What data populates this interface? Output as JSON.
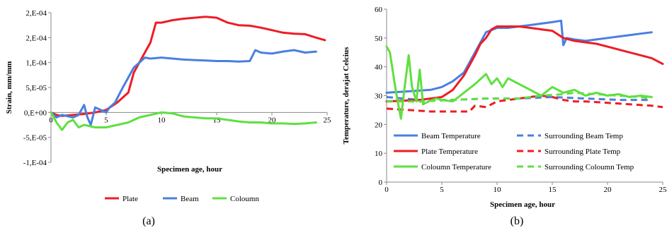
{
  "chart_data": [
    {
      "type": "line",
      "panel_label": "(a)",
      "xlabel": "Specimen age, hour",
      "ylabel": "Strain, mm/mm",
      "xlim": [
        0,
        25
      ],
      "ylim": [
        -0.0001,
        0.0002
      ],
      "xticks": [
        0,
        5,
        10,
        15,
        20,
        25
      ],
      "xtick_labels": [
        "0",
        "5",
        "10",
        "15",
        "20",
        "25"
      ],
      "yticks": [
        0.0002,
        0.00015,
        0.0001,
        5e-05,
        0,
        -5e-05,
        -0.0001
      ],
      "ytick_labels": [
        "2,E-04",
        "2,E-04",
        "1,E-04",
        "5,E-05",
        "0,E+00",
        "-5,E-05",
        "-1,E-04"
      ],
      "grid": false,
      "legend_position": "bottom",
      "series": [
        {
          "name": "Plate",
          "color": "#ee1c25",
          "dash": "solid",
          "points": [
            [
              0,
              0
            ],
            [
              0.5,
              -5e-06
            ],
            [
              1,
              -7e-06
            ],
            [
              2,
              -5e-06
            ],
            [
              3,
              -3e-06
            ],
            [
              4,
              0
            ],
            [
              5,
              5e-06
            ],
            [
              6,
              2e-05
            ],
            [
              7,
              4e-05
            ],
            [
              7.5,
              8e-05
            ],
            [
              8,
              0.0001
            ],
            [
              8.5,
              0.00012
            ],
            [
              9,
              0.00014
            ],
            [
              9.5,
              0.00018
            ],
            [
              10,
              0.00018
            ],
            [
              11,
              0.000185
            ],
            [
              12,
              0.000188
            ],
            [
              13,
              0.00019
            ],
            [
              14,
              0.000192
            ],
            [
              15,
              0.00019
            ],
            [
              16,
              0.00018
            ],
            [
              17,
              0.000175
            ],
            [
              18,
              0.000174
            ],
            [
              19,
              0.00017
            ],
            [
              20,
              0.000165
            ],
            [
              21,
              0.00016
            ],
            [
              22,
              0.000158
            ],
            [
              23,
              0.000157
            ],
            [
              24,
              0.00015
            ],
            [
              24.8,
              0.000145
            ]
          ]
        },
        {
          "name": "Beam",
          "color": "#4a7fe0",
          "dash": "solid",
          "points": [
            [
              0,
              0
            ],
            [
              0.5,
              -1e-05
            ],
            [
              1,
              -5e-06
            ],
            [
              2,
              -1e-05
            ],
            [
              2.5,
              -5e-06
            ],
            [
              3,
              1.5e-05
            ],
            [
              3.3,
              -1e-05
            ],
            [
              3.6,
              -2.5e-05
            ],
            [
              4,
              1e-05
            ],
            [
              4.5,
              5e-06
            ],
            [
              5,
              0
            ],
            [
              5.3,
              1e-05
            ],
            [
              5.8,
              2e-05
            ],
            [
              6.5,
              5e-05
            ],
            [
              7,
              7e-05
            ],
            [
              7.5,
              9e-05
            ],
            [
              8,
              0.0001
            ],
            [
              8.5,
              0.00011
            ],
            [
              9,
              0.000108
            ],
            [
              10,
              0.00011
            ],
            [
              11,
              0.000108
            ],
            [
              12,
              0.000106
            ],
            [
              13,
              0.000105
            ],
            [
              14,
              0.000104
            ],
            [
              15,
              0.000103
            ],
            [
              16,
              0.000103
            ],
            [
              17,
              0.000102
            ],
            [
              18,
              0.000103
            ],
            [
              18.5,
              0.000125
            ],
            [
              19,
              0.00012
            ],
            [
              20,
              0.000118
            ],
            [
              21,
              0.000122
            ],
            [
              22,
              0.000125
            ],
            [
              23,
              0.00012
            ],
            [
              24,
              0.000122
            ]
          ]
        },
        {
          "name": "Coloumn",
          "color": "#5ee040",
          "dash": "solid",
          "points": [
            [
              0,
              0
            ],
            [
              0.5,
              -2e-05
            ],
            [
              1,
              -3.5e-05
            ],
            [
              1.5,
              -2e-05
            ],
            [
              2,
              -1.5e-05
            ],
            [
              2.5,
              -3e-05
            ],
            [
              3,
              -2.5e-05
            ],
            [
              4,
              -3e-05
            ],
            [
              5,
              -3e-05
            ],
            [
              6,
              -2.5e-05
            ],
            [
              7,
              -2e-05
            ],
            [
              8,
              -1e-05
            ],
            [
              9,
              -5e-06
            ],
            [
              10,
              0
            ],
            [
              11,
              -2e-06
            ],
            [
              12,
              -8e-06
            ],
            [
              13,
              -1e-05
            ],
            [
              14,
              -1.2e-05
            ],
            [
              15,
              -1.2e-05
            ],
            [
              16,
              -1.5e-05
            ],
            [
              17,
              -1.8e-05
            ],
            [
              18,
              -2e-05
            ],
            [
              19,
              -2e-05
            ],
            [
              20,
              -2.2e-05
            ],
            [
              21,
              -2.2e-05
            ],
            [
              22,
              -2.3e-05
            ],
            [
              23,
              -2.2e-05
            ],
            [
              24,
              -2e-05
            ]
          ]
        }
      ]
    },
    {
      "type": "line",
      "panel_label": "(b)",
      "xlabel": "Specimen age, hour",
      "ylabel": "Temperature, derajat Celcius",
      "xlim": [
        0,
        25
      ],
      "ylim": [
        0,
        60
      ],
      "xticks": [
        0,
        5,
        10,
        15,
        20,
        25
      ],
      "xtick_labels": [
        "0",
        "5",
        "10",
        "15",
        "20",
        "25"
      ],
      "yticks": [
        0,
        10,
        20,
        30,
        40,
        50,
        60
      ],
      "ytick_labels": [
        "0",
        "10",
        "20",
        "30",
        "40",
        "50",
        "60"
      ],
      "grid": false,
      "legend_position": "bottom-inside",
      "series": [
        {
          "name": "Beam Temperature",
          "color": "#4a7fe0",
          "dash": "solid",
          "points": [
            [
              0,
              31
            ],
            [
              2,
              31.5
            ],
            [
              4,
              32
            ],
            [
              5,
              33
            ],
            [
              6,
              35
            ],
            [
              7,
              38
            ],
            [
              8,
              45
            ],
            [
              9,
              52
            ],
            [
              10,
              53.5
            ],
            [
              11,
              53.5
            ],
            [
              12,
              54
            ],
            [
              13,
              54.5
            ],
            [
              14,
              55
            ],
            [
              15,
              55.5
            ],
            [
              15.8,
              56
            ],
            [
              16,
              47.5
            ],
            [
              16.3,
              50
            ],
            [
              17,
              49.5
            ],
            [
              18,
              49
            ],
            [
              19,
              49.5
            ],
            [
              20,
              50
            ],
            [
              21,
              50.5
            ],
            [
              22,
              51
            ],
            [
              23,
              51.5
            ],
            [
              24,
              52
            ]
          ]
        },
        {
          "name": "Surrounding Beam Temp",
          "color": "#4a7fe0",
          "dash": "dashed",
          "points": [
            [
              0,
              29.5
            ],
            [
              3,
              28.5
            ],
            [
              6,
              28.5
            ],
            [
              9,
              29
            ],
            [
              12,
              29
            ],
            [
              15,
              29.5
            ],
            [
              18,
              29
            ],
            [
              21,
              28.5
            ],
            [
              24,
              28.5
            ]
          ]
        },
        {
          "name": "Plate Temperature",
          "color": "#ee1c25",
          "dash": "solid",
          "points": [
            [
              0,
              28
            ],
            [
              3,
              28.5
            ],
            [
              5,
              29.5
            ],
            [
              6,
              32
            ],
            [
              7,
              37
            ],
            [
              8,
              44
            ],
            [
              8.5,
              48
            ],
            [
              9,
              50
            ],
            [
              9.5,
              53
            ],
            [
              10,
              54
            ],
            [
              11,
              54
            ],
            [
              12,
              54
            ],
            [
              13,
              53.5
            ],
            [
              14,
              53
            ],
            [
              15,
              52.5
            ],
            [
              16,
              50
            ],
            [
              17,
              49
            ],
            [
              18,
              48.5
            ],
            [
              19,
              48
            ],
            [
              20,
              47
            ],
            [
              21,
              46
            ],
            [
              22,
              45
            ],
            [
              23,
              44
            ],
            [
              24,
              43
            ],
            [
              25,
              41
            ]
          ]
        },
        {
          "name": "Surrounding Plate Temp",
          "color": "#ee1c25",
          "dash": "dashed",
          "points": [
            [
              0,
              25.5
            ],
            [
              2,
              25
            ],
            [
              4,
              24.5
            ],
            [
              6,
              24.5
            ],
            [
              7.5,
              24.5
            ],
            [
              8,
              26.5
            ],
            [
              9,
              26
            ],
            [
              10,
              28
            ],
            [
              12,
              29
            ],
            [
              14,
              30
            ],
            [
              15,
              29.5
            ],
            [
              16,
              28.5
            ],
            [
              17,
              28
            ],
            [
              18,
              28
            ],
            [
              20,
              27.5
            ],
            [
              22,
              27
            ],
            [
              24,
              26.5
            ],
            [
              25,
              26
            ]
          ]
        },
        {
          "name": "Coloumn Temperature",
          "color": "#5ee040",
          "dash": "solid",
          "points": [
            [
              0,
              47
            ],
            [
              0.3,
              45
            ],
            [
              0.7,
              35
            ],
            [
              1,
              28
            ],
            [
              1.3,
              22
            ],
            [
              1.6,
              32
            ],
            [
              2,
              44
            ],
            [
              2.3,
              33
            ],
            [
              2.7,
              28
            ],
            [
              3,
              39
            ],
            [
              3.3,
              27
            ],
            [
              3.8,
              28
            ],
            [
              4.5,
              29
            ],
            [
              5,
              28.5
            ],
            [
              6,
              28
            ],
            [
              7,
              31
            ],
            [
              8,
              34
            ],
            [
              9,
              37.5
            ],
            [
              9.5,
              34
            ],
            [
              10,
              36
            ],
            [
              10.5,
              33
            ],
            [
              11,
              36
            ],
            [
              12,
              34
            ],
            [
              13,
              32
            ],
            [
              14,
              30
            ],
            [
              15,
              33
            ],
            [
              16,
              31
            ],
            [
              17,
              32
            ],
            [
              18,
              30
            ],
            [
              19,
              31
            ],
            [
              20,
              30
            ],
            [
              21,
              30.5
            ],
            [
              22,
              29.5
            ],
            [
              23,
              30
            ],
            [
              24,
              29.5
            ]
          ]
        },
        {
          "name": "Surrounding Coloumn Temp",
          "color": "#5ee040",
          "dash": "dashed",
          "points": [
            [
              0,
              28
            ],
            [
              3,
              28
            ],
            [
              6,
              28.5
            ],
            [
              9,
              29
            ],
            [
              12,
              29
            ],
            [
              14,
              30
            ],
            [
              16,
              30.5
            ],
            [
              17,
              31
            ],
            [
              19,
              30.5
            ],
            [
              21,
              30
            ],
            [
              23,
              29.5
            ],
            [
              24,
              29
            ]
          ]
        }
      ]
    }
  ]
}
